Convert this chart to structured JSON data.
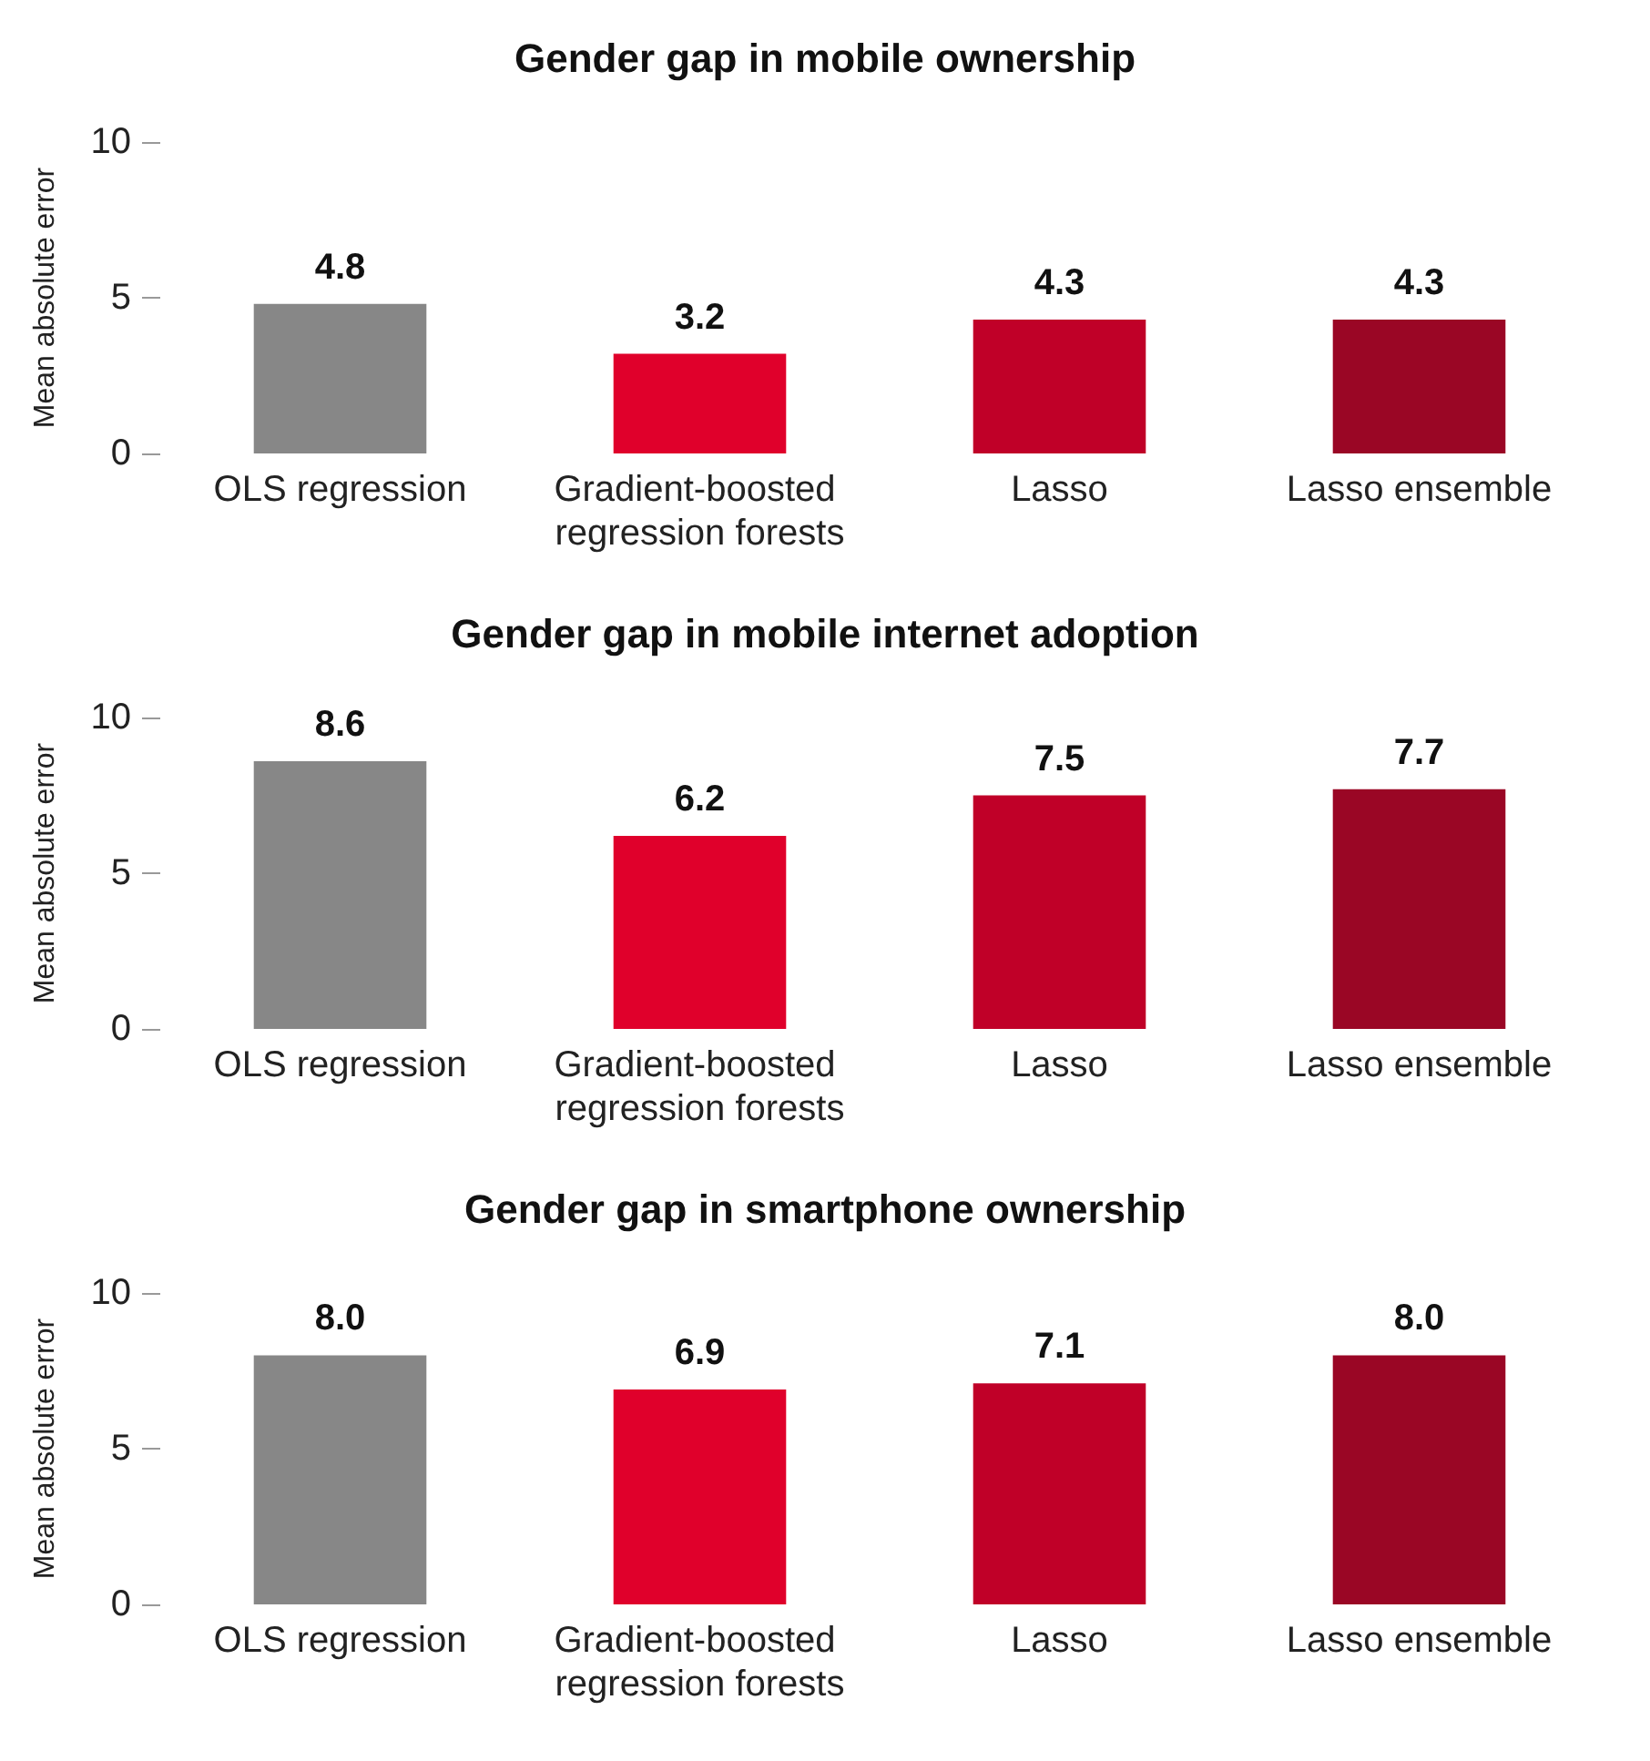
{
  "chart_data": [
    {
      "type": "bar",
      "title": "Gender gap in mobile ownership",
      "ylabel": "Mean absolute error",
      "categories": [
        "OLS regression",
        "Gradient-boosted regression forests",
        "Lasso",
        "Lasso ensemble"
      ],
      "values": [
        4.8,
        3.2,
        4.3,
        4.3
      ],
      "colors": [
        "#878787",
        "#e0002b",
        "#c00028",
        "#9a0625"
      ],
      "ylim": [
        0,
        10
      ],
      "yticks": [
        0,
        5,
        10
      ],
      "data_labels": true,
      "grid": false
    },
    {
      "type": "bar",
      "title": "Gender gap in mobile internet adoption",
      "ylabel": "Mean absolute error",
      "categories": [
        "OLS regression",
        "Gradient-boosted regression forests",
        "Lasso",
        "Lasso ensemble"
      ],
      "values": [
        8.6,
        6.2,
        7.5,
        7.7
      ],
      "colors": [
        "#878787",
        "#e0002b",
        "#c00028",
        "#9a0625"
      ],
      "ylim": [
        0,
        10
      ],
      "yticks": [
        0,
        5,
        10
      ],
      "data_labels": true,
      "grid": false
    },
    {
      "type": "bar",
      "title": "Gender gap in smartphone ownership",
      "ylabel": "Mean absolute error",
      "categories": [
        "OLS regression",
        "Gradient-boosted regression forests",
        "Lasso",
        "Lasso ensemble"
      ],
      "values": [
        8.0,
        6.9,
        7.1,
        8.0
      ],
      "value_labels": [
        "8.0",
        "6.9",
        "7.1",
        "8.0"
      ],
      "colors": [
        "#878787",
        "#e0002b",
        "#c00028",
        "#9a0625"
      ],
      "ylim": [
        0,
        10
      ],
      "yticks": [
        0,
        5,
        10
      ],
      "grid": false
    }
  ]
}
